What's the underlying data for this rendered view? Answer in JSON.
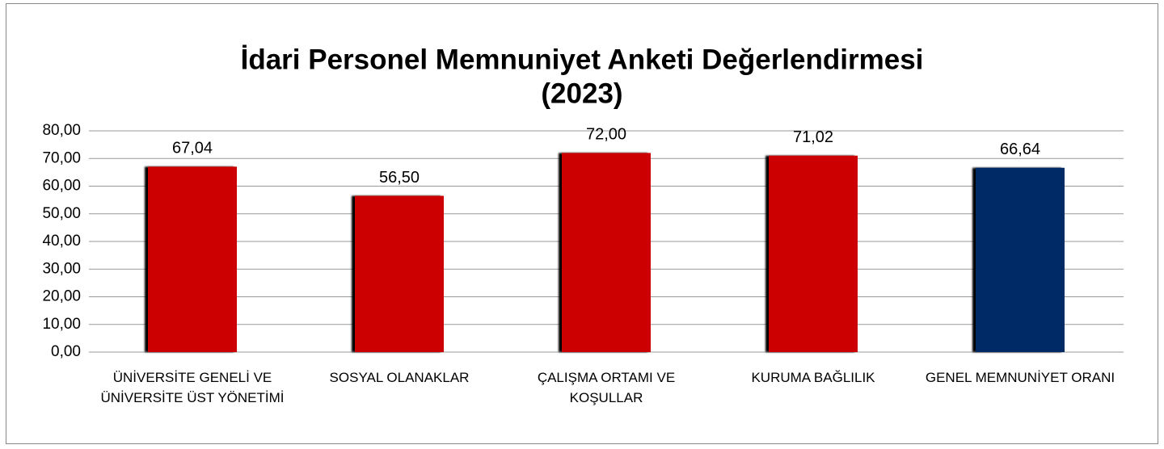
{
  "chart_data": {
    "type": "bar",
    "title": [
      "İdari Personel Memnuniyet Anketi Değerlendirmesi",
      "(2023)"
    ],
    "categories": [
      "ÜNİVERSİTE GENELİ VE ÜNİVERSİTE ÜST YÖNETİMİ",
      "SOSYAL OLANAKLAR",
      "ÇALIŞMA ORTAMI VE KOŞULLAR",
      "KURUMA BAĞLILIK",
      "GENEL MEMNUNİYET ORANI"
    ],
    "values": [
      67.04,
      56.5,
      72,
      71.02,
      66.64
    ],
    "value_labels": [
      "67,04",
      "56,50",
      "72,00",
      "71,02",
      "66,64"
    ],
    "colors": [
      "#cc0000",
      "#cc0000",
      "#cc0000",
      "#cc0000",
      "#002a66"
    ],
    "ylim": [
      0,
      80
    ],
    "yticks": [
      {
        "value": 0,
        "label": "0,00"
      },
      {
        "value": 10,
        "label": "10,00"
      },
      {
        "value": 20,
        "label": "20,00"
      },
      {
        "value": 30,
        "label": "30,00"
      },
      {
        "value": 40,
        "label": "40,00"
      },
      {
        "value": 50,
        "label": "50,00"
      },
      {
        "value": 60,
        "label": "60,00"
      },
      {
        "value": 70,
        "label": "70,00"
      },
      {
        "value": 80,
        "label": "80,00"
      }
    ],
    "grid": true
  }
}
